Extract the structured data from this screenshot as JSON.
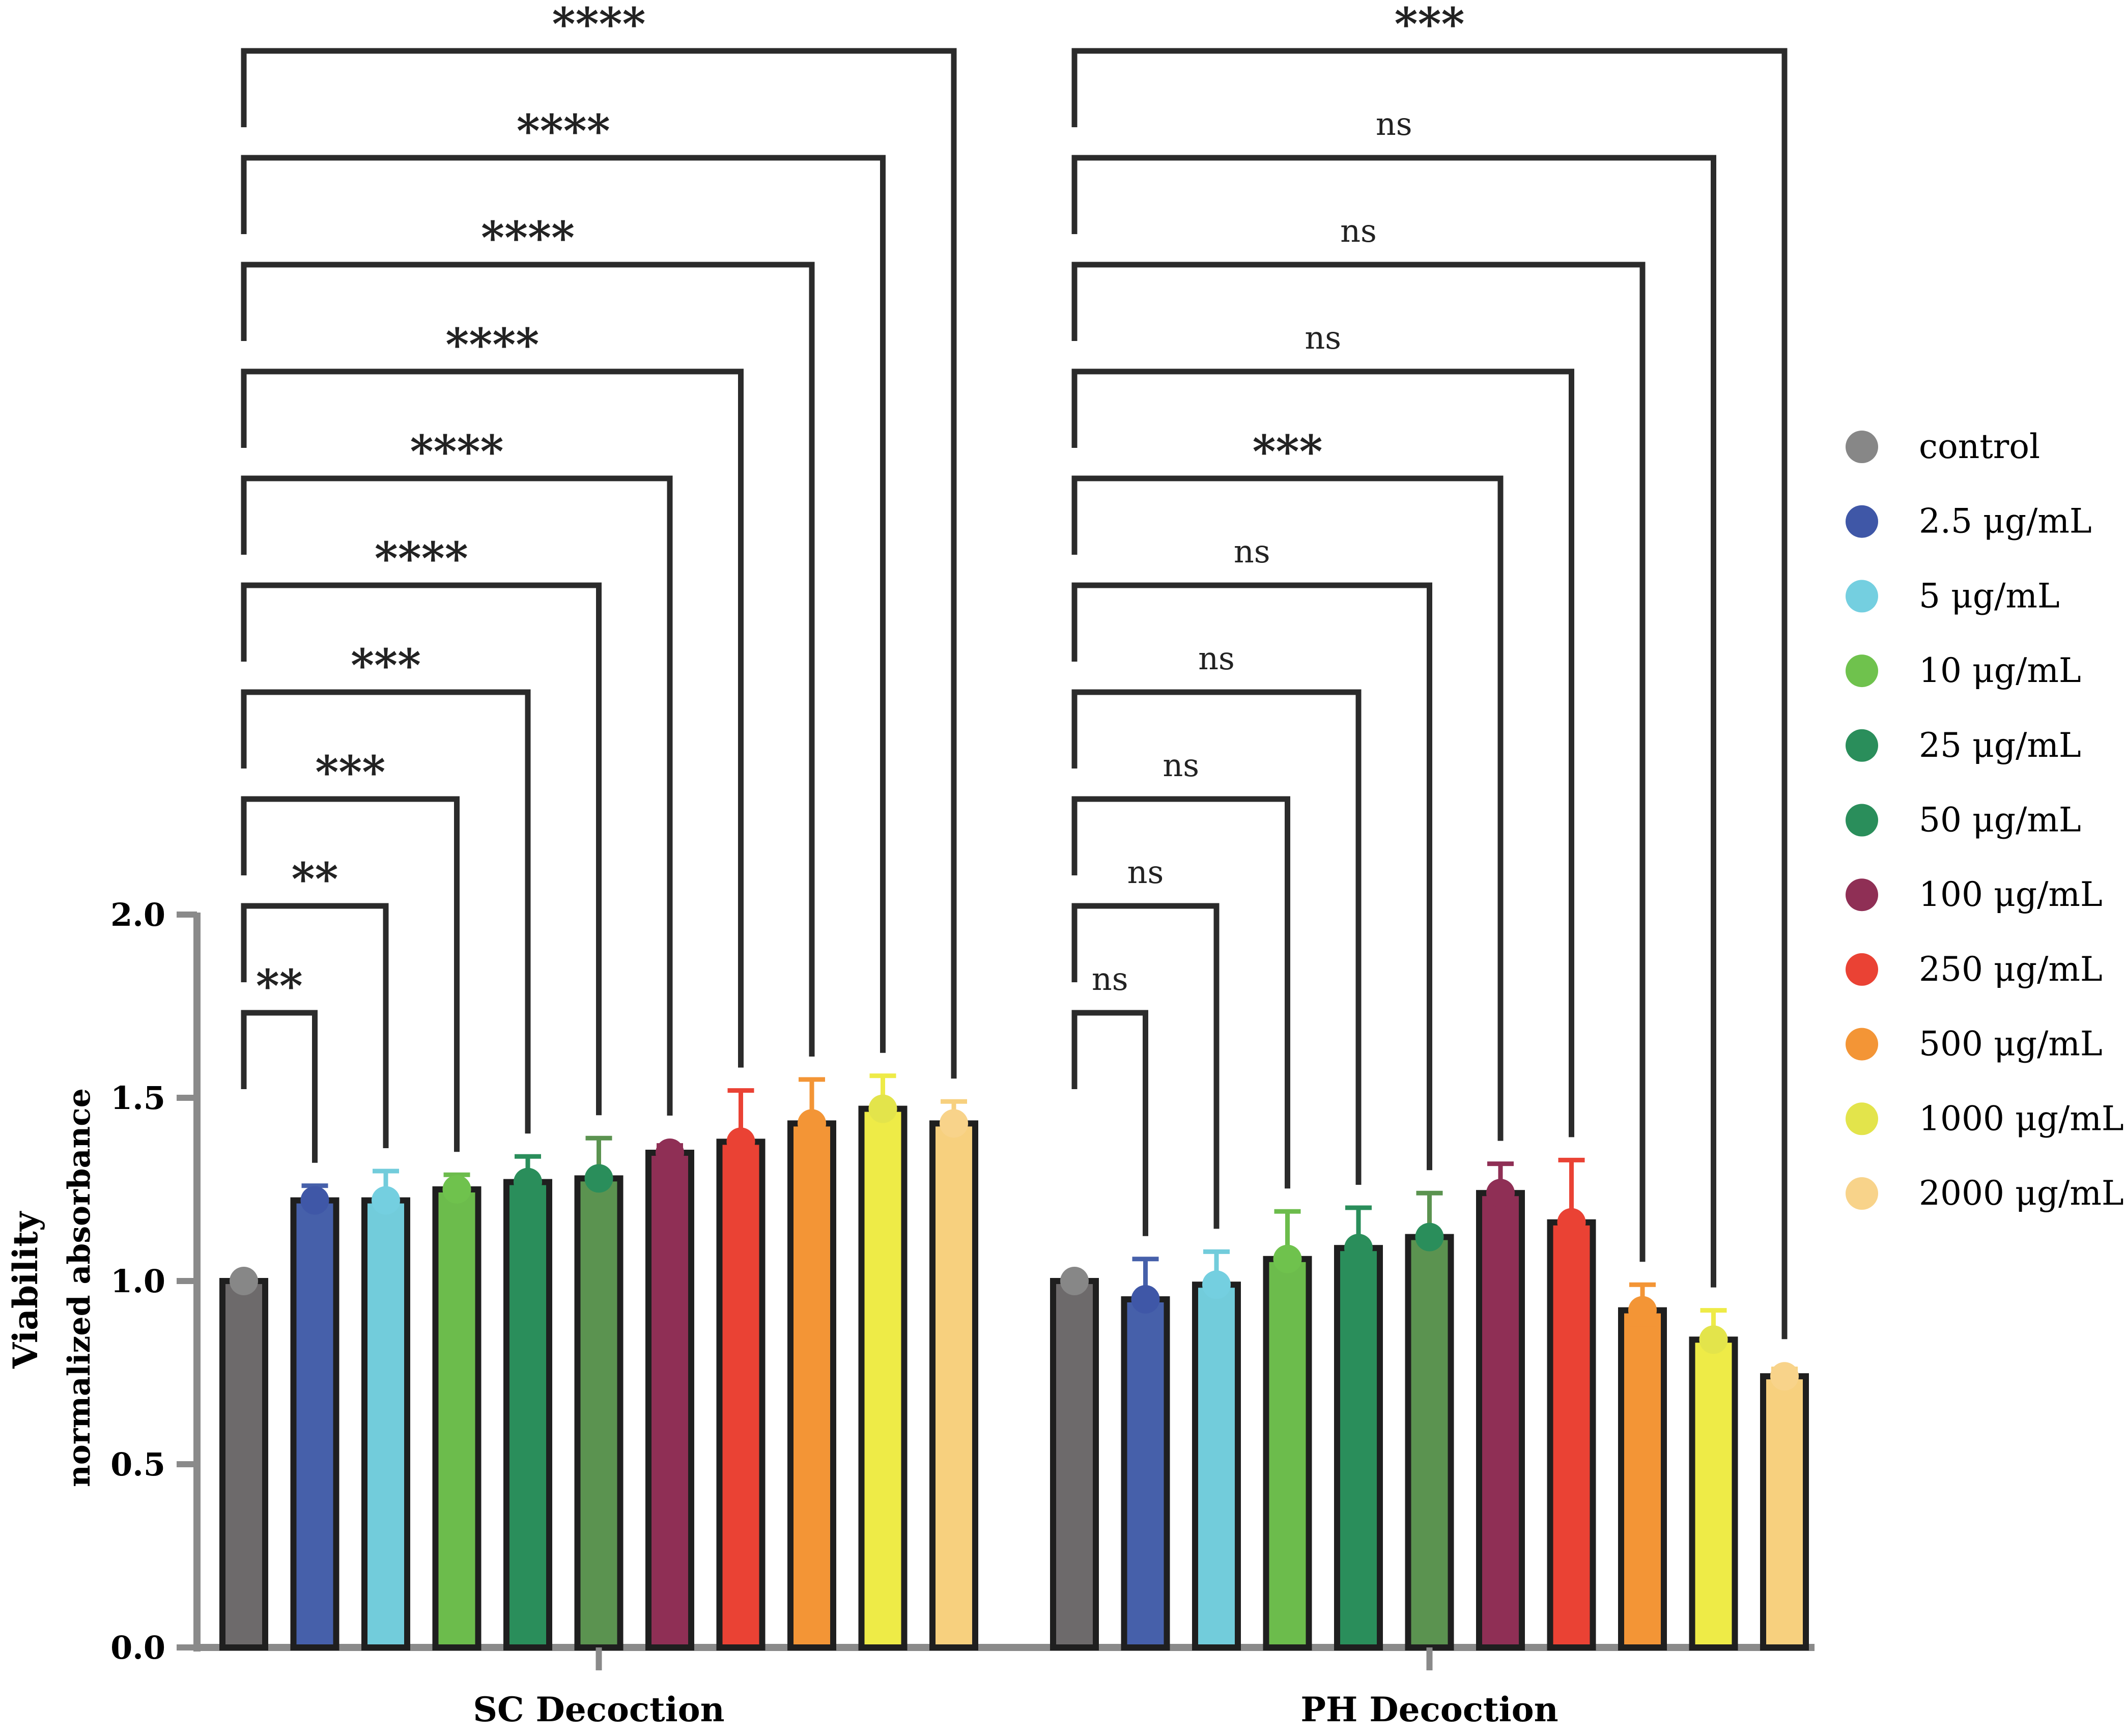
{
  "chart_data": {
    "type": "bar",
    "title": "",
    "xlabel": "",
    "ylabel": "Viability",
    "ylabel_sub": "normalized absorbance",
    "ylim": [
      0,
      2.0
    ],
    "yticks": [
      0.0,
      0.5,
      1.0,
      1.5,
      2.0
    ],
    "ytick_labels": [
      "0.0",
      "0.5",
      "1.0",
      "1.5",
      "2.0"
    ],
    "grid": false,
    "legend_position": "right",
    "categories": [
      "control",
      "2.5 μg/mL",
      "5 μg/mL",
      "10 μg/mL",
      "25 μg/mL",
      "50 μg/mL",
      "100 μg/mL",
      "250 μg/mL",
      "500 μg/mL",
      "1000 μg/mL",
      "2000 μg/mL"
    ],
    "colors": [
      "#6d6a6b",
      "#4660aa",
      "#72ccdb",
      "#6cbc4c",
      "#2a8e5b",
      "#5b9350",
      "#8f2f55",
      "#ea4234",
      "#f39536",
      "#eeeb47",
      "#f7d07e"
    ],
    "legend_dot_colors": [
      "#878787",
      "#3f57a7",
      "#74cfe0",
      "#6fc24d",
      "#2a8e5b",
      "#2a8e5b",
      "#8f2f55",
      "#ea4234",
      "#f39536",
      "#e3e44b",
      "#f8d38a"
    ],
    "groups": [
      {
        "name": "SC Decoction",
        "values": [
          1.0,
          1.22,
          1.22,
          1.25,
          1.27,
          1.28,
          1.35,
          1.38,
          1.43,
          1.47,
          1.43
        ],
        "error_low": [
          0.0,
          0.03,
          0.05,
          0.03,
          0.05,
          0.11,
          0.02,
          0.09,
          0.08,
          0.09,
          0.04
        ],
        "error_high": [
          0.0,
          0.04,
          0.08,
          0.04,
          0.07,
          0.11,
          0.02,
          0.14,
          0.12,
          0.09,
          0.06
        ],
        "significance": [
          "**",
          "**",
          "***",
          "***",
          "****",
          "****",
          "****",
          "****",
          "****",
          "****"
        ]
      },
      {
        "name": "PH Decoction",
        "values": [
          1.0,
          0.95,
          0.99,
          1.06,
          1.09,
          1.12,
          1.24,
          1.16,
          0.92,
          0.84,
          0.74
        ],
        "error_low": [
          0.0,
          0.05,
          0.04,
          0.07,
          0.07,
          0.12,
          0.05,
          0.12,
          0.05,
          0.07,
          0.0
        ],
        "error_high": [
          0.0,
          0.11,
          0.09,
          0.13,
          0.11,
          0.12,
          0.08,
          0.17,
          0.07,
          0.08,
          0.02
        ],
        "significance": [
          "ns",
          "ns",
          "ns",
          "ns",
          "ns",
          "***",
          "ns",
          "ns",
          "ns",
          "***"
        ]
      }
    ]
  }
}
